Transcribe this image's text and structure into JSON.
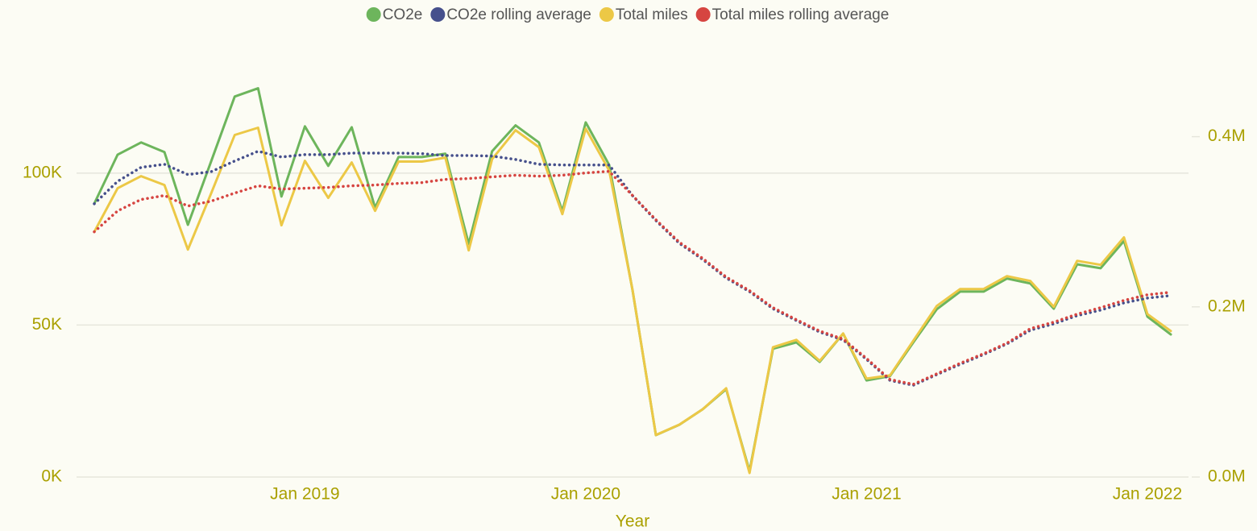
{
  "chart_data": {
    "type": "line",
    "x_label": "Year",
    "categories": [
      null,
      null,
      null,
      null,
      null,
      null,
      null,
      null,
      null,
      "Jan 2019",
      null,
      null,
      null,
      null,
      null,
      null,
      null,
      null,
      null,
      null,
      null,
      "Jan 2020",
      null,
      null,
      null,
      null,
      null,
      null,
      null,
      null,
      null,
      null,
      null,
      "Jan 2021",
      null,
      null,
      null,
      null,
      null,
      null,
      null,
      null,
      null,
      null,
      null,
      "Jan 2022",
      null
    ],
    "ylim": [
      0,
      140000
    ],
    "yticks": [
      {
        "value": 0,
        "label": "0K"
      },
      {
        "value": 50000,
        "label": "50K"
      },
      {
        "value": 100000,
        "label": "100K"
      }
    ],
    "y2lim": [
      0,
      500000
    ],
    "y2ticks": [
      {
        "value": 0,
        "label": "0.0M"
      },
      {
        "value": 200000,
        "label": "0.2M"
      },
      {
        "value": 400000,
        "label": "0.4M"
      }
    ],
    "grid": true,
    "legend": "top",
    "series": [
      {
        "name": "CO2e",
        "color": "#6db55c",
        "line_style": "solid",
        "values": [
          90000,
          106100,
          110100,
          106900,
          83000,
          104000,
          125200,
          127900,
          92300,
          115400,
          102400,
          115100,
          88600,
          105300,
          105300,
          106400,
          76700,
          107200,
          115700,
          110100,
          87500,
          116700,
          102700,
          61500,
          13800,
          17200,
          22300,
          28900,
          1900,
          42200,
          44300,
          37900,
          47200,
          31800,
          33200,
          44300,
          55200,
          61000,
          61000,
          65300,
          63700,
          55400,
          70000,
          68700,
          77700,
          52800,
          46900
        ]
      },
      {
        "name": "CO2e rolling average",
        "color": "#46508c",
        "line_style": "dotted",
        "values": [
          89900,
          97300,
          101900,
          102900,
          99500,
          100500,
          104000,
          107200,
          105300,
          106100,
          106100,
          106600,
          106600,
          106600,
          106400,
          105800,
          105800,
          105600,
          104500,
          102900,
          102700,
          102700,
          102700,
          92600,
          84400,
          76900,
          71600,
          65500,
          61000,
          55400,
          51500,
          47700,
          45100,
          38700,
          31800,
          30200,
          33700,
          37100,
          40300,
          43800,
          48300,
          50400,
          53100,
          54900,
          57300,
          58900,
          59700
        ]
      },
      {
        "name": "Total miles",
        "color": "#ecc846",
        "line_style": "solid",
        "axis": "y2",
        "values": [
          288200,
          339400,
          353600,
          343200,
          267300,
          333700,
          402000,
          410500,
          295800,
          371600,
          328000,
          369700,
          312800,
          370700,
          370700,
          375400,
          266400,
          373500,
          407600,
          387700,
          309000,
          409500,
          360200,
          219900,
          49300,
          61600,
          79600,
          104300,
          4700,
          152600,
          161200,
          136500,
          168700,
          115700,
          119400,
          160200,
          201000,
          220900,
          220900,
          236100,
          230400,
          200000,
          254100,
          249300,
          281600,
          191500,
          171600
        ]
      },
      {
        "name": "Total miles rolling average",
        "color": "#d64541",
        "line_style": "dotted",
        "axis": "y2",
        "values": [
          288200,
          312800,
          326100,
          330900,
          318500,
          324200,
          333700,
          342200,
          338400,
          339400,
          340300,
          342200,
          343200,
          345100,
          346000,
          349800,
          350800,
          352700,
          354600,
          353600,
          354600,
          357400,
          359300,
          330900,
          302400,
          275900,
          256900,
          235100,
          219000,
          199100,
          184900,
          171600,
          162100,
          139400,
          114700,
          109000,
          121300,
          133700,
          145000,
          157400,
          174400,
          182000,
          191500,
          199100,
          207600,
          214200,
          217100
        ]
      }
    ]
  }
}
